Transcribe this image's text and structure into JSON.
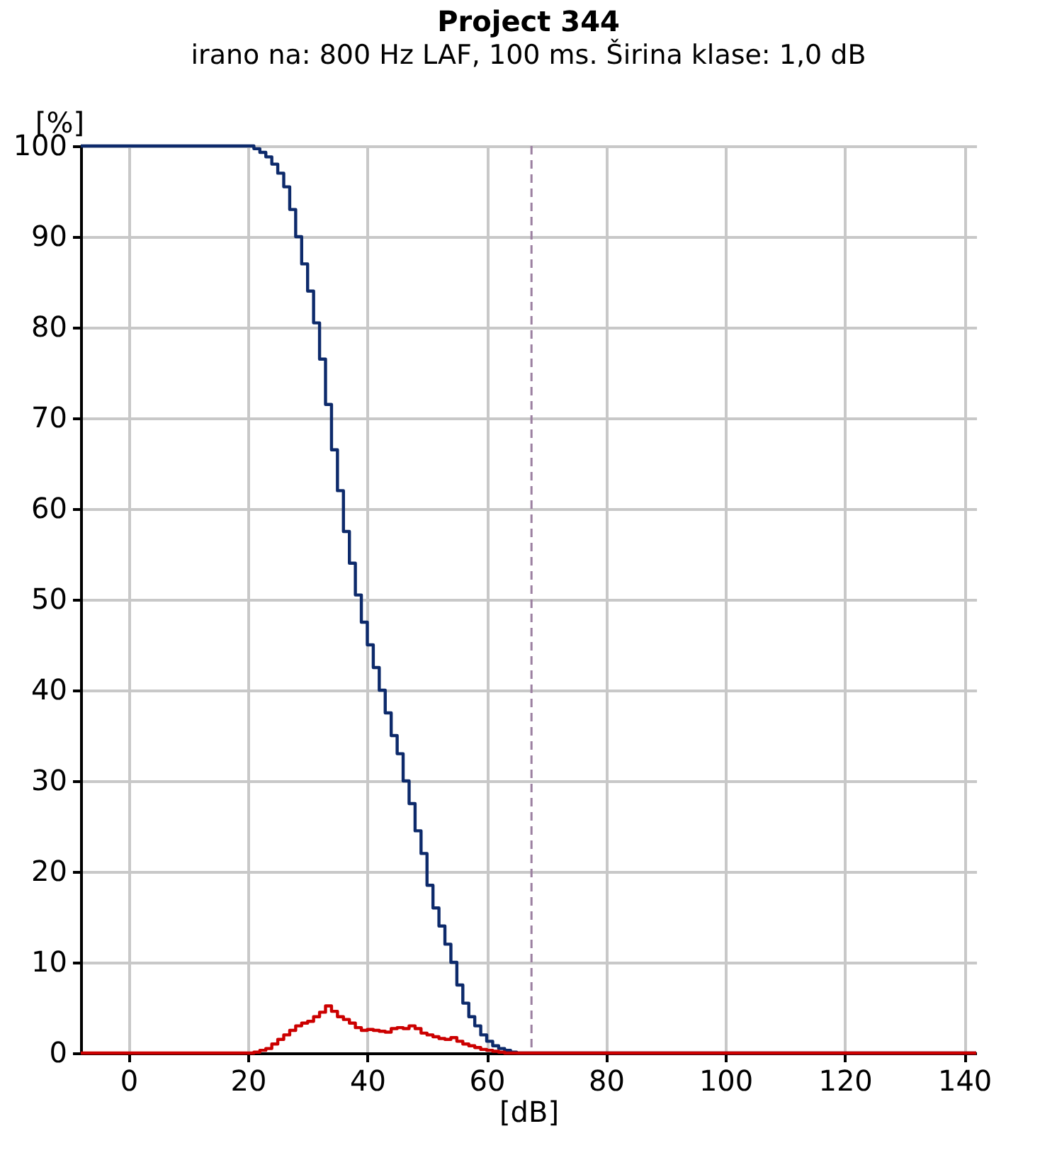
{
  "chart_data": {
    "type": "step",
    "title": "Project 344",
    "subtitle": "irano na: 800 Hz  LAF, 100 ms. Širina klase: 1,0 dB",
    "xlabel": "[dB]",
    "ylabel": "[%]",
    "xlim": [
      -8,
      142
    ],
    "xticks": [
      0,
      20,
      40,
      60,
      80,
      100,
      120,
      140
    ],
    "ylim": [
      0,
      100
    ],
    "yticks": [
      0,
      10,
      20,
      30,
      40,
      50,
      60,
      70,
      80,
      90,
      100
    ],
    "grid": true,
    "marker": "none",
    "line_style": "solid",
    "series": [
      {
        "color": "#0d2a6b",
        "x": [
          -8,
          20,
          21,
          22,
          23,
          24,
          25,
          26,
          27,
          28,
          29,
          30,
          31,
          32,
          33,
          34,
          35,
          36,
          37,
          38,
          39,
          40,
          41,
          42,
          43,
          44,
          45,
          46,
          47,
          48,
          49,
          50,
          51,
          52,
          53,
          54,
          55,
          56,
          57,
          58,
          59,
          60,
          61,
          62,
          63,
          64,
          65,
          142
        ],
        "values": [
          100,
          100,
          99.7,
          99.3,
          98.8,
          98,
          97,
          95.5,
          93,
          90,
          87,
          84,
          80.5,
          76.5,
          71.5,
          66.5,
          62,
          57.5,
          54,
          50.5,
          47.5,
          45,
          42.5,
          40,
          37.5,
          35,
          33,
          30,
          27.5,
          24.5,
          22,
          18.5,
          16,
          14,
          12,
          10,
          7.5,
          5.5,
          4,
          3,
          2,
          1.3,
          0.8,
          0.5,
          0.3,
          0.1,
          0,
          0
        ]
      },
      {
        "color": "#cc0000",
        "x": [
          -8,
          20,
          21,
          22,
          23,
          24,
          25,
          26,
          27,
          28,
          29,
          30,
          31,
          32,
          33,
          34,
          35,
          36,
          37,
          38,
          39,
          40,
          41,
          42,
          43,
          44,
          45,
          46,
          47,
          48,
          49,
          50,
          51,
          52,
          53,
          54,
          55,
          56,
          57,
          58,
          59,
          60,
          61,
          62,
          63,
          142
        ],
        "values": [
          0,
          0,
          0.1,
          0.3,
          0.5,
          1,
          1.5,
          2,
          2.5,
          3,
          3.3,
          3.5,
          4,
          4.5,
          5.2,
          4.6,
          4,
          3.7,
          3.3,
          2.8,
          2.5,
          2.6,
          2.5,
          2.4,
          2.3,
          2.7,
          2.8,
          2.7,
          3,
          2.7,
          2.2,
          2,
          1.8,
          1.6,
          1.5,
          1.7,
          1.3,
          1,
          0.8,
          0.6,
          0.4,
          0.3,
          0.2,
          0.1,
          0,
          0
        ]
      }
    ],
    "ref_lines": [
      {
        "axis": "x",
        "value": 67.5,
        "color": "#9b7fa0",
        "line_style": "dashed"
      }
    ]
  }
}
